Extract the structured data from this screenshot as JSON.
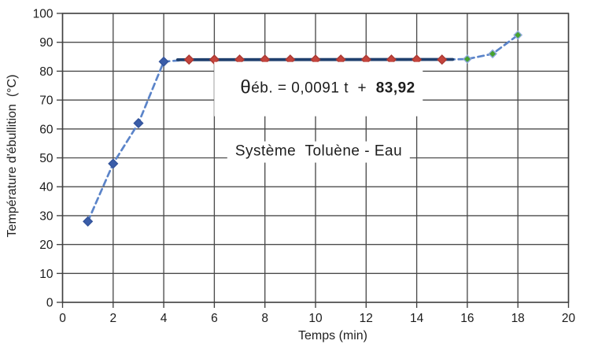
{
  "chart_data": {
    "type": "scatter",
    "title": "",
    "xlabel": "Temps (min)",
    "ylabel": "Température d'ébullition  (°C)",
    "xlim": [
      0,
      20
    ],
    "x_tick_step": 2,
    "ylim": [
      0,
      100
    ],
    "y_tick_step": 10,
    "grid": true,
    "legend": "none",
    "points": [
      {
        "x": 1,
        "y": 28,
        "group": "heating"
      },
      {
        "x": 2,
        "y": 48,
        "group": "heating"
      },
      {
        "x": 3,
        "y": 62,
        "group": "heating"
      },
      {
        "x": 4,
        "y": 83.3,
        "group": "heating"
      },
      {
        "x": 5,
        "y": 84,
        "group": "plateau"
      },
      {
        "x": 6,
        "y": 84,
        "group": "plateau"
      },
      {
        "x": 7,
        "y": 84,
        "group": "plateau"
      },
      {
        "x": 8,
        "y": 84,
        "group": "plateau"
      },
      {
        "x": 9,
        "y": 84,
        "group": "plateau"
      },
      {
        "x": 10,
        "y": 84,
        "group": "plateau"
      },
      {
        "x": 11,
        "y": 84,
        "group": "plateau"
      },
      {
        "x": 12,
        "y": 84,
        "group": "plateau"
      },
      {
        "x": 13,
        "y": 84,
        "group": "plateau"
      },
      {
        "x": 14,
        "y": 84,
        "group": "plateau"
      },
      {
        "x": 15,
        "y": 84,
        "group": "plateau"
      },
      {
        "x": 16,
        "y": 84.2,
        "group": "final"
      },
      {
        "x": 17,
        "y": 86,
        "group": "final"
      },
      {
        "x": 18,
        "y": 92.5,
        "group": "final"
      }
    ],
    "groups": {
      "heating": {
        "fill": "#3a5da9",
        "stroke": "#33539b",
        "size": 5.6
      },
      "plateau": {
        "fill": "#c5443c",
        "stroke": "#a93832",
        "size": 5.6
      },
      "final": {
        "fill": "#46a22e",
        "stroke": "#8fa8dc",
        "size": 4.9
      }
    },
    "connector": {
      "color": "#5b84c9",
      "width": 2.7,
      "dash": "7.5 5"
    },
    "trendline": {
      "x_start": 4.55,
      "x_end": 15.42,
      "slope": 0.0091,
      "intercept": 83.92,
      "color": "#20406e",
      "width": 3.8
    },
    "annotations": {
      "equation_theta": "θ",
      "equation_prefix": "éb. = 0,0091 t  +  ",
      "equation_bold": "83,92",
      "system": "Système  Toluène - Eau"
    },
    "style": {
      "grid_color": "#4b4b4b",
      "axis_color": "#3f3f3f",
      "tick_label_color": "#1b1b1b",
      "tick_font_size": 15.5
    }
  }
}
